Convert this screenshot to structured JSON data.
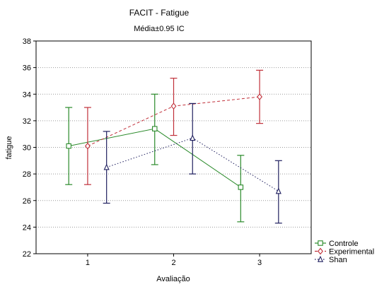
{
  "chart_data": {
    "type": "line",
    "title": "FACIT - Fatigue",
    "subtitle": "Média±0.95 IC",
    "xlabel": "Avaliação",
    "ylabel": "fatigue",
    "x_ticks": [
      1,
      2,
      3
    ],
    "y_ticks": [
      22,
      24,
      26,
      28,
      30,
      32,
      34,
      36,
      38
    ],
    "xlim": [
      0.4,
      3.6
    ],
    "ylim": [
      22,
      38
    ],
    "grid": "horizontal dotted",
    "legend_position": "bottom-right",
    "series": [
      {
        "name": "Controle",
        "color": "#2a8a2a",
        "line_style": "solid",
        "marker": "square",
        "x": [
          1,
          2,
          3
        ],
        "y": [
          30.1,
          31.4,
          27.0
        ],
        "ci_low": [
          27.2,
          28.7,
          24.4
        ],
        "ci_high": [
          33.0,
          34.0,
          29.4
        ]
      },
      {
        "name": "Experimental",
        "color": "#c0303a",
        "line_style": "dashed",
        "marker": "diamond",
        "x": [
          1,
          2,
          3
        ],
        "y": [
          30.1,
          33.1,
          33.8
        ],
        "ci_low": [
          27.2,
          30.9,
          31.8
        ],
        "ci_high": [
          33.0,
          35.2,
          35.8
        ]
      },
      {
        "name": "Shan",
        "color": "#1f1f5f",
        "line_style": "dotted",
        "marker": "triangle",
        "x": [
          1,
          2,
          3
        ],
        "y": [
          28.5,
          30.7,
          26.7
        ],
        "ci_low": [
          25.8,
          28.0,
          24.3
        ],
        "ci_high": [
          31.2,
          33.3,
          29.0
        ]
      }
    ]
  }
}
